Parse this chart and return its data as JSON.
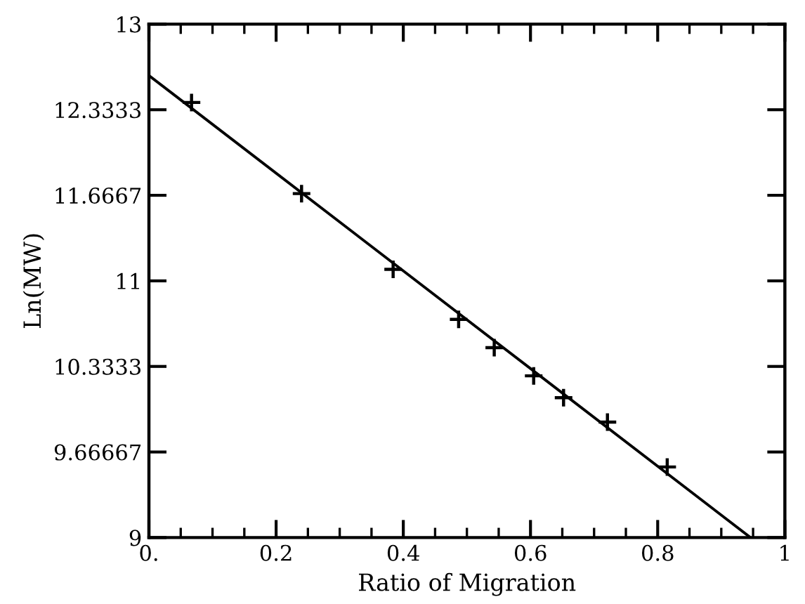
{
  "chart_data": {
    "type": "scatter",
    "xlabel": "Ratio of Migration",
    "ylabel": "Ln(MW)",
    "series": [
      {
        "color": "#000000",
        "marker": "cross",
        "x": [
          0.067,
          0.24,
          0.384,
          0.487,
          0.543,
          0.605,
          0.652,
          0.721,
          0.815
        ],
        "values": [
          12.39,
          11.68,
          11.09,
          10.7,
          10.48,
          10.26,
          10.09,
          9.9,
          9.55
        ]
      },
      {
        "type": "line",
        "color": "#000000",
        "line_style": "solid",
        "marker": "none",
        "x": [
          0,
          0.946
        ],
        "values": [
          12.6,
          9
        ]
      }
    ],
    "xlim": [
      0,
      1
    ],
    "ylim": [
      9,
      13
    ],
    "xticks": [
      {
        "value": 0,
        "label": "0."
      },
      0.2,
      0.4,
      0.6,
      0.8,
      1
    ],
    "yticks": [
      9,
      9.66667,
      10.3333,
      11,
      11.6667,
      12.3333,
      13
    ],
    "grid": false,
    "legend": false
  }
}
